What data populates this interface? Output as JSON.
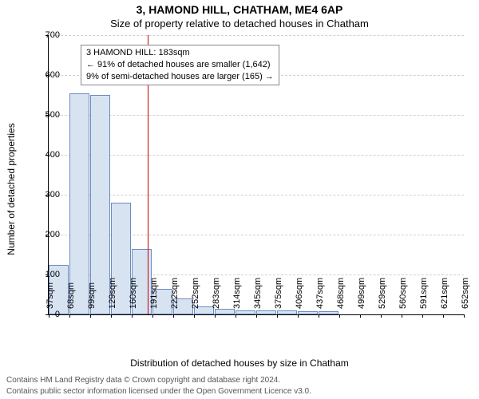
{
  "title_main": "3, HAMOND HILL, CHATHAM, ME4 6AP",
  "title_sub": "Size of property relative to detached houses in Chatham",
  "ylabel": "Number of detached properties",
  "xlabel": "Distribution of detached houses by size in Chatham",
  "footer1": "Contains HM Land Registry data © Crown copyright and database right 2024.",
  "footer2": "Contains public sector information licensed under the Open Government Licence v3.0.",
  "annotation": {
    "line1": "3 HAMOND HILL: 183sqm",
    "line2": "← 91% of detached houses are smaller (1,642)",
    "line3": "9% of semi-detached houses are larger (165) →"
  },
  "chart": {
    "type": "histogram",
    "ylim": [
      0,
      700
    ],
    "ytick_step": 100,
    "xticks": [
      "37sqm",
      "68sqm",
      "99sqm",
      "129sqm",
      "160sqm",
      "191sqm",
      "222sqm",
      "252sqm",
      "283sqm",
      "314sqm",
      "345sqm",
      "375sqm",
      "406sqm",
      "437sqm",
      "468sqm",
      "499sqm",
      "529sqm",
      "560sqm",
      "591sqm",
      "621sqm",
      "652sqm"
    ],
    "values": [
      125,
      555,
      550,
      280,
      165,
      65,
      40,
      20,
      15,
      10,
      10,
      10,
      8,
      8,
      0,
      0,
      0,
      0,
      0,
      0
    ],
    "bar_fill": "#d8e3f2",
    "bar_stroke": "#6b8bc0",
    "grid_color": "#d0d0d0",
    "background_color": "#ffffff",
    "reference_line": {
      "bin_index": 4.75,
      "color": "#cc0000"
    }
  }
}
